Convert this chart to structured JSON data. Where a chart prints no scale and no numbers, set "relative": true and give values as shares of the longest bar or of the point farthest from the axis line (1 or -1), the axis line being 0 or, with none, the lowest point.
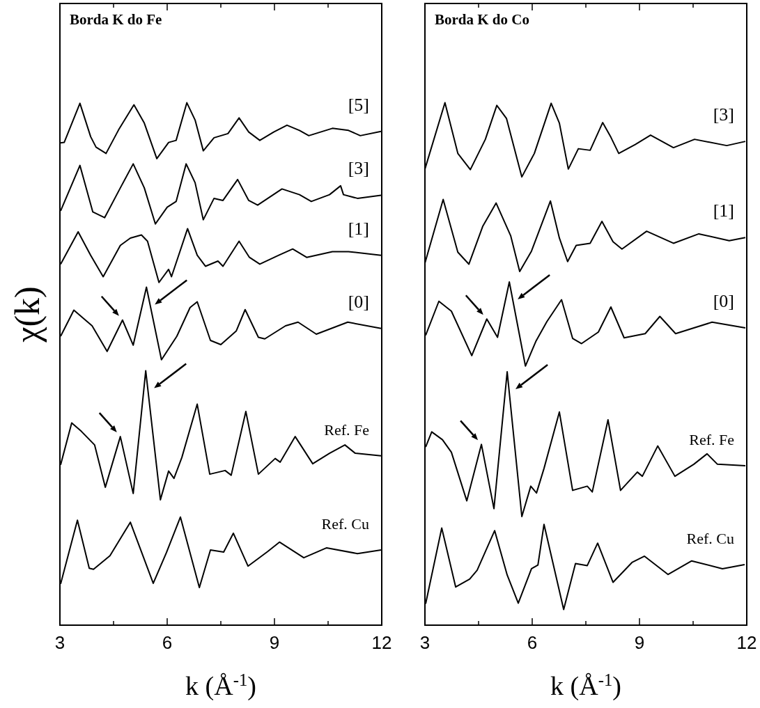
{
  "chart_data": [
    {
      "type": "line",
      "title": "Borda K do Fe",
      "xlabel": "k (Å$^{-1}$)",
      "ylabel": "χ(k)",
      "relative": true,
      "tick_labels": "x",
      "xlim": [
        3,
        12
      ],
      "xticks": [
        3,
        {
          "value": 4.5,
          "label": null
        },
        6,
        {
          "value": 7.5,
          "label": null
        },
        9,
        {
          "value": 10.5,
          "label": null
        },
        12
      ],
      "series": [
        {
          "name": "[5]",
          "color": "#000000",
          "x": [
            3.02,
            3.12,
            3.56,
            3.86,
            4.01,
            4.29,
            4.64,
            5.07,
            5.36,
            5.71,
            6.04,
            6.25,
            6.55,
            6.78,
            7.01,
            7.31,
            7.7,
            8.01,
            8.28,
            8.59,
            8.98,
            9.35,
            9.7,
            9.96,
            10.62,
            11.07,
            11.4,
            11.98
          ],
          "values": [
            0.923,
            0.924,
            0.999,
            0.935,
            0.915,
            0.903,
            0.948,
            0.996,
            0.961,
            0.893,
            0.924,
            0.928,
            1.0,
            0.967,
            0.908,
            0.933,
            0.941,
            0.971,
            0.944,
            0.928,
            0.944,
            0.957,
            0.947,
            0.937,
            0.951,
            0.947,
            0.937,
            0.945
          ]
        },
        {
          "name": "[3]",
          "color": "#000000",
          "x": [
            3.02,
            3.56,
            3.92,
            4.25,
            4.69,
            5.05,
            5.36,
            5.67,
            6.0,
            6.25,
            6.53,
            6.78,
            7.01,
            7.31,
            7.56,
            7.97,
            8.28,
            8.53,
            9.21,
            9.7,
            10.03,
            10.54,
            10.85,
            10.93,
            11.32,
            11.98
          ],
          "values": [
            0.793,
            0.88,
            0.791,
            0.78,
            0.837,
            0.883,
            0.837,
            0.768,
            0.8,
            0.811,
            0.883,
            0.847,
            0.776,
            0.817,
            0.813,
            0.853,
            0.813,
            0.804,
            0.835,
            0.824,
            0.811,
            0.824,
            0.841,
            0.824,
            0.817,
            0.823
          ]
        },
        {
          "name": "[1]",
          "color": "#000000",
          "x": [
            3.02,
            3.51,
            3.86,
            4.21,
            4.69,
            4.97,
            5.28,
            5.45,
            5.77,
            6.04,
            6.12,
            6.57,
            6.84,
            7.07,
            7.42,
            7.56,
            8.01,
            8.3,
            8.59,
            9.12,
            9.51,
            9.9,
            10.62,
            11.07,
            11.98
          ],
          "values": [
            0.691,
            0.753,
            0.708,
            0.667,
            0.727,
            0.741,
            0.747,
            0.735,
            0.656,
            0.681,
            0.667,
            0.759,
            0.708,
            0.687,
            0.697,
            0.687,
            0.735,
            0.704,
            0.691,
            0.708,
            0.72,
            0.704,
            0.715,
            0.715,
            0.708
          ]
        },
        {
          "name": "[0]",
          "color": "#000000",
          "x": [
            3.02,
            3.39,
            3.9,
            4.32,
            4.75,
            5.05,
            5.42,
            5.84,
            6.27,
            6.64,
            6.84,
            7.21,
            7.5,
            7.93,
            8.18,
            8.55,
            8.73,
            9.31,
            9.66,
            10.17,
            11.05,
            11.98
          ],
          "values": [
            0.553,
            0.603,
            0.573,
            0.524,
            0.584,
            0.536,
            0.647,
            0.508,
            0.553,
            0.608,
            0.619,
            0.545,
            0.537,
            0.563,
            0.604,
            0.551,
            0.548,
            0.573,
            0.58,
            0.557,
            0.58,
            0.568
          ]
        },
        {
          "name": "Ref. Fe",
          "color": "#000000",
          "x": [
            3.02,
            3.33,
            3.6,
            3.97,
            4.27,
            4.69,
            5.05,
            5.4,
            5.81,
            6.04,
            6.19,
            6.41,
            6.84,
            7.19,
            7.62,
            7.79,
            8.2,
            8.55,
            9.02,
            9.16,
            9.58,
            10.07,
            10.54,
            10.97,
            11.26,
            11.98
          ],
          "values": [
            0.307,
            0.387,
            0.371,
            0.345,
            0.264,
            0.361,
            0.252,
            0.487,
            0.24,
            0.295,
            0.281,
            0.321,
            0.423,
            0.289,
            0.296,
            0.287,
            0.409,
            0.289,
            0.319,
            0.312,
            0.361,
            0.309,
            0.329,
            0.345,
            0.329,
            0.324
          ]
        },
        {
          "name": "Ref. Cu",
          "color": "#000000",
          "x": [
            3.02,
            3.49,
            3.82,
            3.94,
            4.4,
            4.97,
            5.26,
            5.61,
            5.98,
            6.37,
            6.9,
            7.21,
            7.58,
            7.85,
            8.26,
            8.81,
            9.14,
            9.82,
            10.46,
            11.32,
            11.98
          ],
          "values": [
            0.079,
            0.201,
            0.109,
            0.107,
            0.133,
            0.197,
            0.144,
            0.08,
            0.139,
            0.207,
            0.072,
            0.144,
            0.14,
            0.176,
            0.113,
            0.141,
            0.159,
            0.129,
            0.148,
            0.137,
            0.144
          ]
        }
      ]
    },
    {
      "type": "line",
      "title": "Borda K do Co",
      "xlabel": "k (Å$^{-1}$)",
      "relative": true,
      "tick_labels": "x",
      "xlim": [
        3,
        12
      ],
      "xticks": [
        3,
        {
          "value": 4.5,
          "label": null
        },
        6,
        {
          "value": 7.5,
          "label": null
        },
        9,
        {
          "value": 10.5,
          "label": null
        },
        12
      ],
      "series": [
        {
          "name": "[3]",
          "color": "#000000",
          "x": [
            3.0,
            3.56,
            3.92,
            4.27,
            4.69,
            5.01,
            5.28,
            5.71,
            6.06,
            6.53,
            6.76,
            7.01,
            7.29,
            7.62,
            7.97,
            8.2,
            8.42,
            8.88,
            9.31,
            9.95,
            10.54,
            11.44,
            11.96
          ],
          "values": [
            0.873,
            1.0,
            0.903,
            0.872,
            0.93,
            0.995,
            0.97,
            0.858,
            0.903,
            0.999,
            0.961,
            0.873,
            0.912,
            0.909,
            0.962,
            0.934,
            0.903,
            0.92,
            0.938,
            0.914,
            0.93,
            0.918,
            0.926
          ]
        },
        {
          "name": "[1]",
          "color": "#000000",
          "x": [
            3.0,
            3.51,
            3.92,
            4.23,
            4.62,
            4.99,
            5.4,
            5.65,
            5.98,
            6.51,
            6.76,
            6.99,
            7.23,
            7.62,
            7.95,
            8.26,
            8.51,
            9.2,
            9.95,
            10.66,
            11.51,
            11.96
          ],
          "values": [
            0.693,
            0.815,
            0.714,
            0.691,
            0.764,
            0.808,
            0.745,
            0.677,
            0.716,
            0.812,
            0.741,
            0.696,
            0.727,
            0.731,
            0.773,
            0.734,
            0.72,
            0.754,
            0.731,
            0.749,
            0.736,
            0.742
          ]
        },
        {
          "name": "[0]",
          "color": "#000000",
          "x": [
            3.02,
            3.39,
            3.74,
            4.31,
            4.73,
            5.03,
            5.36,
            5.81,
            6.1,
            6.41,
            6.82,
            7.13,
            7.38,
            7.85,
            8.2,
            8.57,
            9.16,
            9.57,
            10.01,
            11.03,
            11.96
          ],
          "values": [
            0.555,
            0.62,
            0.601,
            0.516,
            0.586,
            0.551,
            0.657,
            0.496,
            0.543,
            0.581,
            0.623,
            0.549,
            0.539,
            0.561,
            0.609,
            0.55,
            0.558,
            0.591,
            0.558,
            0.58,
            0.569
          ]
        },
        {
          "name": "Ref. Fe",
          "color": "#000000",
          "x": [
            3.02,
            3.19,
            3.49,
            3.74,
            4.17,
            4.58,
            4.93,
            5.3,
            5.71,
            5.96,
            6.12,
            6.33,
            6.76,
            7.13,
            7.54,
            7.68,
            8.12,
            8.47,
            8.94,
            9.08,
            9.51,
            9.99,
            10.52,
            10.89,
            11.18,
            11.96
          ],
          "values": [
            0.341,
            0.37,
            0.355,
            0.331,
            0.238,
            0.346,
            0.223,
            0.485,
            0.208,
            0.266,
            0.253,
            0.3,
            0.408,
            0.258,
            0.266,
            0.255,
            0.393,
            0.258,
            0.293,
            0.285,
            0.343,
            0.285,
            0.308,
            0.328,
            0.308,
            0.305
          ]
        },
        {
          "name": "Ref. Cu",
          "color": "#000000",
          "x": [
            3.02,
            3.47,
            3.86,
            4.25,
            4.46,
            4.95,
            5.3,
            5.61,
            5.98,
            6.16,
            6.33,
            6.88,
            7.21,
            7.54,
            7.83,
            8.26,
            8.79,
            9.14,
            9.8,
            10.46,
            11.32,
            11.94
          ],
          "values": [
            0.041,
            0.186,
            0.073,
            0.088,
            0.105,
            0.181,
            0.096,
            0.042,
            0.108,
            0.115,
            0.193,
            0.03,
            0.118,
            0.114,
            0.157,
            0.082,
            0.12,
            0.132,
            0.097,
            0.123,
            0.108,
            0.116
          ]
        }
      ]
    }
  ]
}
